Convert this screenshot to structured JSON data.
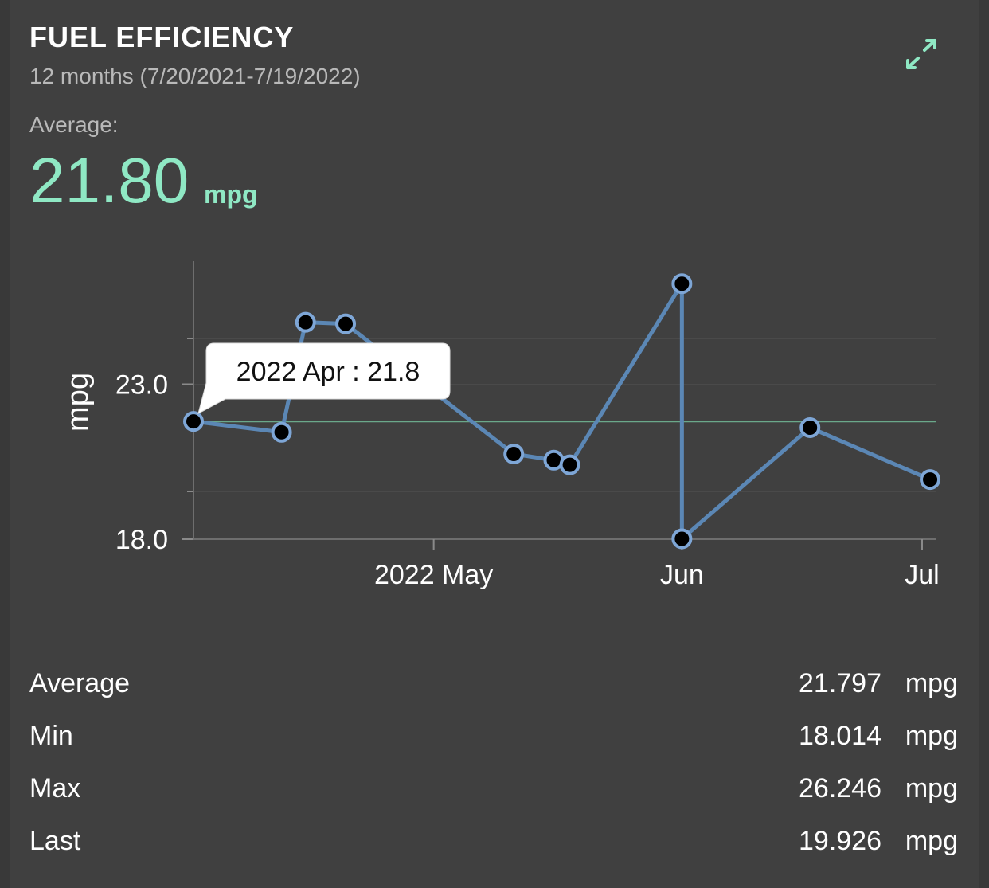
{
  "header": {
    "title": "FUEL EFFICIENCY",
    "period": "12 months (7/20/2021-7/19/2022)",
    "average_label": "Average:",
    "average_value": "21.80",
    "average_unit": "mpg",
    "expand_icon": "expand-arrows-icon"
  },
  "colors": {
    "accent": "#8fe8c4",
    "line": "#5b87b5",
    "background": "#404040"
  },
  "chart_data": {
    "type": "line",
    "ylabel": "mpg",
    "yticks": [
      18.0,
      23.0
    ],
    "ytick_labels": [
      "18.0",
      "23.0"
    ],
    "ylim": [
      18.0,
      26.2
    ],
    "xlim": [
      "2022-04-01",
      "2022-07-01"
    ],
    "xticks": [
      "2022-05-01",
      "2022-06-01",
      "2022-07-01"
    ],
    "xtick_labels": [
      "2022 May",
      "Jun",
      "Jul"
    ],
    "average_line": 21.797,
    "points": [
      {
        "x": "2022-04-01",
        "y": 21.8
      },
      {
        "x": "2022-04-12",
        "y": 21.45
      },
      {
        "x": "2022-04-15",
        "y": 25.0
      },
      {
        "x": "2022-04-20",
        "y": 24.95
      },
      {
        "x": "2022-05-11",
        "y": 20.75
      },
      {
        "x": "2022-05-16",
        "y": 20.55
      },
      {
        "x": "2022-05-18",
        "y": 20.4
      },
      {
        "x": "2022-06-01",
        "y": 26.246
      },
      {
        "x": "2022-06-01",
        "y": 18.014
      },
      {
        "x": "2022-06-17",
        "y": 21.6
      },
      {
        "x": "2022-07-02",
        "y": 19.926
      }
    ],
    "tooltip": {
      "label": "2022 Apr : 21.8",
      "point_index": 0
    },
    "grid": true,
    "legend": "none"
  },
  "stats": [
    {
      "label": "Average",
      "value": "21.797",
      "unit": "mpg"
    },
    {
      "label": "Min",
      "value": "18.014",
      "unit": "mpg"
    },
    {
      "label": "Max",
      "value": "26.246",
      "unit": "mpg"
    },
    {
      "label": "Last",
      "value": "19.926",
      "unit": "mpg"
    }
  ]
}
